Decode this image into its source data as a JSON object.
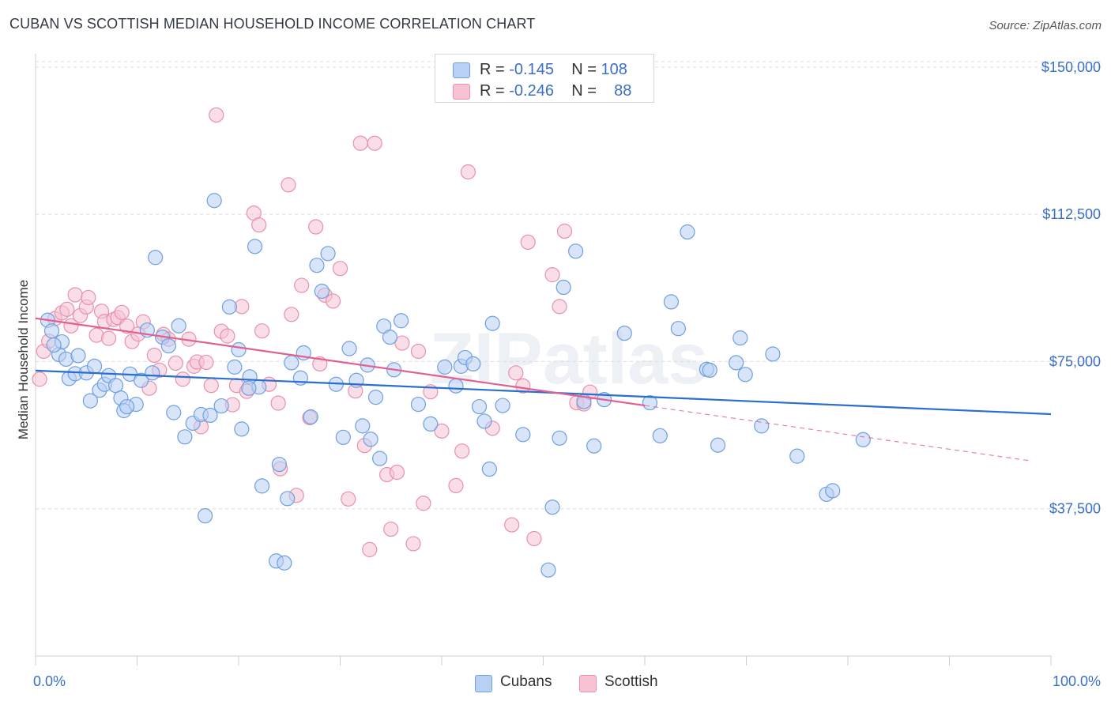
{
  "title": "CUBAN VS SCOTTISH MEDIAN HOUSEHOLD INCOME CORRELATION CHART",
  "source": "Source: ZipAtlas.com",
  "watermark": "ZIPatlas",
  "colors": {
    "cubans": "#6f9fe0",
    "cubans_fill": "#b8d0f4",
    "cubans_line": "#2a6fd0",
    "scottish": "#e890ae",
    "scottish_fill": "#f6c2d4",
    "scottish_line": "#e06090",
    "tick": "#3a6fc4"
  },
  "legend": {
    "rows": [
      {
        "r_label": "R = ",
        "r_value": "-0.145",
        "n_label": "N = ",
        "n_value": "108"
      },
      {
        "r_label": "R = ",
        "r_value": "-0.246",
        "n_label": "N = ",
        "n_value": "88"
      }
    ],
    "series": [
      "Cubans",
      "Scottish"
    ]
  },
  "chart_data": {
    "type": "scatter",
    "title": "CUBAN VS SCOTTISH MEDIAN HOUSEHOLD INCOME CORRELATION CHART",
    "xlabel": "",
    "ylabel": "Median Household Income",
    "xlim": [
      0,
      100
    ],
    "ylim": [
      0,
      155000
    ],
    "x_tick_labels": [
      "0.0%",
      "100.0%"
    ],
    "y_ticks": [
      37500,
      75000,
      112500,
      150000
    ],
    "y_tick_labels": [
      "$37,500",
      "$75,000",
      "$112,500",
      "$150,000"
    ],
    "grid": true,
    "legend_position": "top-center",
    "series": [
      {
        "name": "Cubans",
        "r": -0.145,
        "n": 108,
        "trend": {
          "x": [
            0,
            100
          ],
          "y": [
            72700,
            61600
          ]
        },
        "points": [
          [
            1.2,
            85500
          ],
          [
            1.6,
            82800
          ],
          [
            2.3,
            76800
          ],
          [
            2.6,
            80000
          ],
          [
            3.0,
            75600
          ],
          [
            3.3,
            70700
          ],
          [
            3.9,
            71900
          ],
          [
            4.2,
            76500
          ],
          [
            5.0,
            72100
          ],
          [
            5.4,
            65000
          ],
          [
            5.8,
            73800
          ],
          [
            6.3,
            67700
          ],
          [
            6.8,
            69200
          ],
          [
            7.2,
            71400
          ],
          [
            7.9,
            68900
          ],
          [
            8.4,
            65700
          ],
          [
            8.7,
            62500
          ],
          [
            9.3,
            71800
          ],
          [
            9.9,
            64100
          ],
          [
            10.4,
            70200
          ],
          [
            11.0,
            83000
          ],
          [
            11.5,
            72100
          ],
          [
            11.8,
            101500
          ],
          [
            12.5,
            81200
          ],
          [
            13.1,
            79000
          ],
          [
            13.6,
            62000
          ],
          [
            14.1,
            84100
          ],
          [
            14.7,
            55800
          ],
          [
            15.5,
            59300
          ],
          [
            16.3,
            61500
          ],
          [
            16.7,
            35700
          ],
          [
            17.2,
            61300
          ],
          [
            17.6,
            116000
          ],
          [
            18.3,
            63700
          ],
          [
            19.1,
            88900
          ],
          [
            19.6,
            73600
          ],
          [
            20.0,
            78000
          ],
          [
            20.3,
            57800
          ],
          [
            21.1,
            71100
          ],
          [
            21.6,
            104300
          ],
          [
            22.0,
            68500
          ],
          [
            22.3,
            43300
          ],
          [
            23.7,
            24200
          ],
          [
            24.0,
            48800
          ],
          [
            24.5,
            23700
          ],
          [
            24.8,
            40100
          ],
          [
            25.2,
            74700
          ],
          [
            26.1,
            70800
          ],
          [
            26.4,
            77200
          ],
          [
            27.1,
            60900
          ],
          [
            27.7,
            99500
          ],
          [
            28.2,
            92900
          ],
          [
            28.8,
            102500
          ],
          [
            29.6,
            69200
          ],
          [
            30.3,
            55700
          ],
          [
            30.9,
            78300
          ],
          [
            31.6,
            70200
          ],
          [
            32.2,
            58600
          ],
          [
            32.7,
            74100
          ],
          [
            33.5,
            65900
          ],
          [
            33.9,
            50300
          ],
          [
            34.3,
            84000
          ],
          [
            34.9,
            81200
          ],
          [
            35.3,
            72900
          ],
          [
            36.0,
            85400
          ],
          [
            37.7,
            64100
          ],
          [
            38.9,
            59100
          ],
          [
            40.3,
            73600
          ],
          [
            41.4,
            68800
          ],
          [
            41.9,
            73800
          ],
          [
            42.3,
            76000
          ],
          [
            43.1,
            74400
          ],
          [
            43.7,
            63500
          ],
          [
            44.2,
            59800
          ],
          [
            44.7,
            47600
          ],
          [
            45.0,
            84700
          ],
          [
            48.0,
            56400
          ],
          [
            50.5,
            21900
          ],
          [
            50.9,
            37900
          ],
          [
            51.6,
            55500
          ],
          [
            52.0,
            93900
          ],
          [
            53.2,
            103100
          ],
          [
            54.0,
            64800
          ],
          [
            55.0,
            53500
          ],
          [
            56.0,
            65300
          ],
          [
            58.0,
            82200
          ],
          [
            61.5,
            56100
          ],
          [
            62.6,
            90200
          ],
          [
            63.3,
            83400
          ],
          [
            64.2,
            108000
          ],
          [
            66.1,
            73000
          ],
          [
            66.4,
            72800
          ],
          [
            67.2,
            53700
          ],
          [
            69.0,
            74700
          ],
          [
            69.4,
            81000
          ],
          [
            69.9,
            71700
          ],
          [
            71.5,
            58600
          ],
          [
            72.6,
            76900
          ],
          [
            75.0,
            50900
          ],
          [
            77.9,
            41200
          ],
          [
            78.5,
            42100
          ],
          [
            81.5,
            55100
          ],
          [
            1.8,
            79200
          ],
          [
            9.0,
            63500
          ],
          [
            21.0,
            68200
          ],
          [
            33.0,
            55200
          ],
          [
            46.0,
            63800
          ],
          [
            60.5,
            64500
          ]
        ]
      },
      {
        "name": "Scottish",
        "r": -0.246,
        "n": 88,
        "trend": {
          "x": [
            0,
            60
          ],
          "y": [
            86000,
            63800
          ]
        },
        "trend_extension": {
          "x": [
            60,
            98
          ],
          "y": [
            63800,
            49700
          ]
        },
        "points": [
          [
            0.4,
            70500
          ],
          [
            0.8,
            77600
          ],
          [
            1.3,
            80200
          ],
          [
            1.9,
            85900
          ],
          [
            2.6,
            87400
          ],
          [
            3.1,
            88300
          ],
          [
            3.5,
            84100
          ],
          [
            3.9,
            92000
          ],
          [
            4.4,
            86700
          ],
          [
            5.0,
            88900
          ],
          [
            5.2,
            91300
          ],
          [
            6.0,
            81700
          ],
          [
            6.5,
            87800
          ],
          [
            6.8,
            85200
          ],
          [
            7.2,
            80900
          ],
          [
            7.7,
            85700
          ],
          [
            8.1,
            86200
          ],
          [
            8.5,
            87500
          ],
          [
            9.0,
            84000
          ],
          [
            9.5,
            80100
          ],
          [
            10.1,
            82000
          ],
          [
            10.6,
            85100
          ],
          [
            11.2,
            68200
          ],
          [
            11.7,
            76600
          ],
          [
            12.2,
            72800
          ],
          [
            12.6,
            81900
          ],
          [
            13.1,
            80700
          ],
          [
            13.8,
            74600
          ],
          [
            14.5,
            70500
          ],
          [
            15.1,
            80700
          ],
          [
            15.6,
            73800
          ],
          [
            15.9,
            74900
          ],
          [
            16.3,
            58400
          ],
          [
            16.8,
            74800
          ],
          [
            17.3,
            68900
          ],
          [
            17.8,
            137800
          ],
          [
            18.3,
            82700
          ],
          [
            18.9,
            81500
          ],
          [
            19.4,
            64000
          ],
          [
            19.8,
            68900
          ],
          [
            20.3,
            89000
          ],
          [
            20.8,
            67400
          ],
          [
            21.5,
            112800
          ],
          [
            22.0,
            109800
          ],
          [
            22.3,
            82800
          ],
          [
            23.0,
            69200
          ],
          [
            23.9,
            64400
          ],
          [
            24.1,
            47700
          ],
          [
            24.9,
            120000
          ],
          [
            25.2,
            87000
          ],
          [
            25.7,
            40900
          ],
          [
            26.2,
            94400
          ],
          [
            27.0,
            60700
          ],
          [
            27.6,
            109300
          ],
          [
            28.0,
            74400
          ],
          [
            28.5,
            91900
          ],
          [
            29.3,
            90400
          ],
          [
            30.0,
            98700
          ],
          [
            30.8,
            40000
          ],
          [
            31.5,
            67500
          ],
          [
            32.0,
            130600
          ],
          [
            32.4,
            53600
          ],
          [
            32.9,
            27100
          ],
          [
            33.4,
            130600
          ],
          [
            34.6,
            46200
          ],
          [
            35.0,
            32300
          ],
          [
            35.6,
            46800
          ],
          [
            36.1,
            79700
          ],
          [
            37.2,
            28600
          ],
          [
            37.7,
            77600
          ],
          [
            38.2,
            38900
          ],
          [
            38.9,
            67300
          ],
          [
            40.0,
            57300
          ],
          [
            41.4,
            43400
          ],
          [
            42.0,
            52200
          ],
          [
            42.6,
            123300
          ],
          [
            45.0,
            58000
          ],
          [
            46.9,
            33400
          ],
          [
            47.3,
            72100
          ],
          [
            48.0,
            68800
          ],
          [
            48.5,
            105400
          ],
          [
            49.1,
            29900
          ],
          [
            50.9,
            97100
          ],
          [
            51.6,
            89000
          ],
          [
            52.1,
            108200
          ],
          [
            53.3,
            64500
          ],
          [
            54.0,
            64200
          ],
          [
            54.6,
            67200
          ]
        ]
      }
    ]
  }
}
